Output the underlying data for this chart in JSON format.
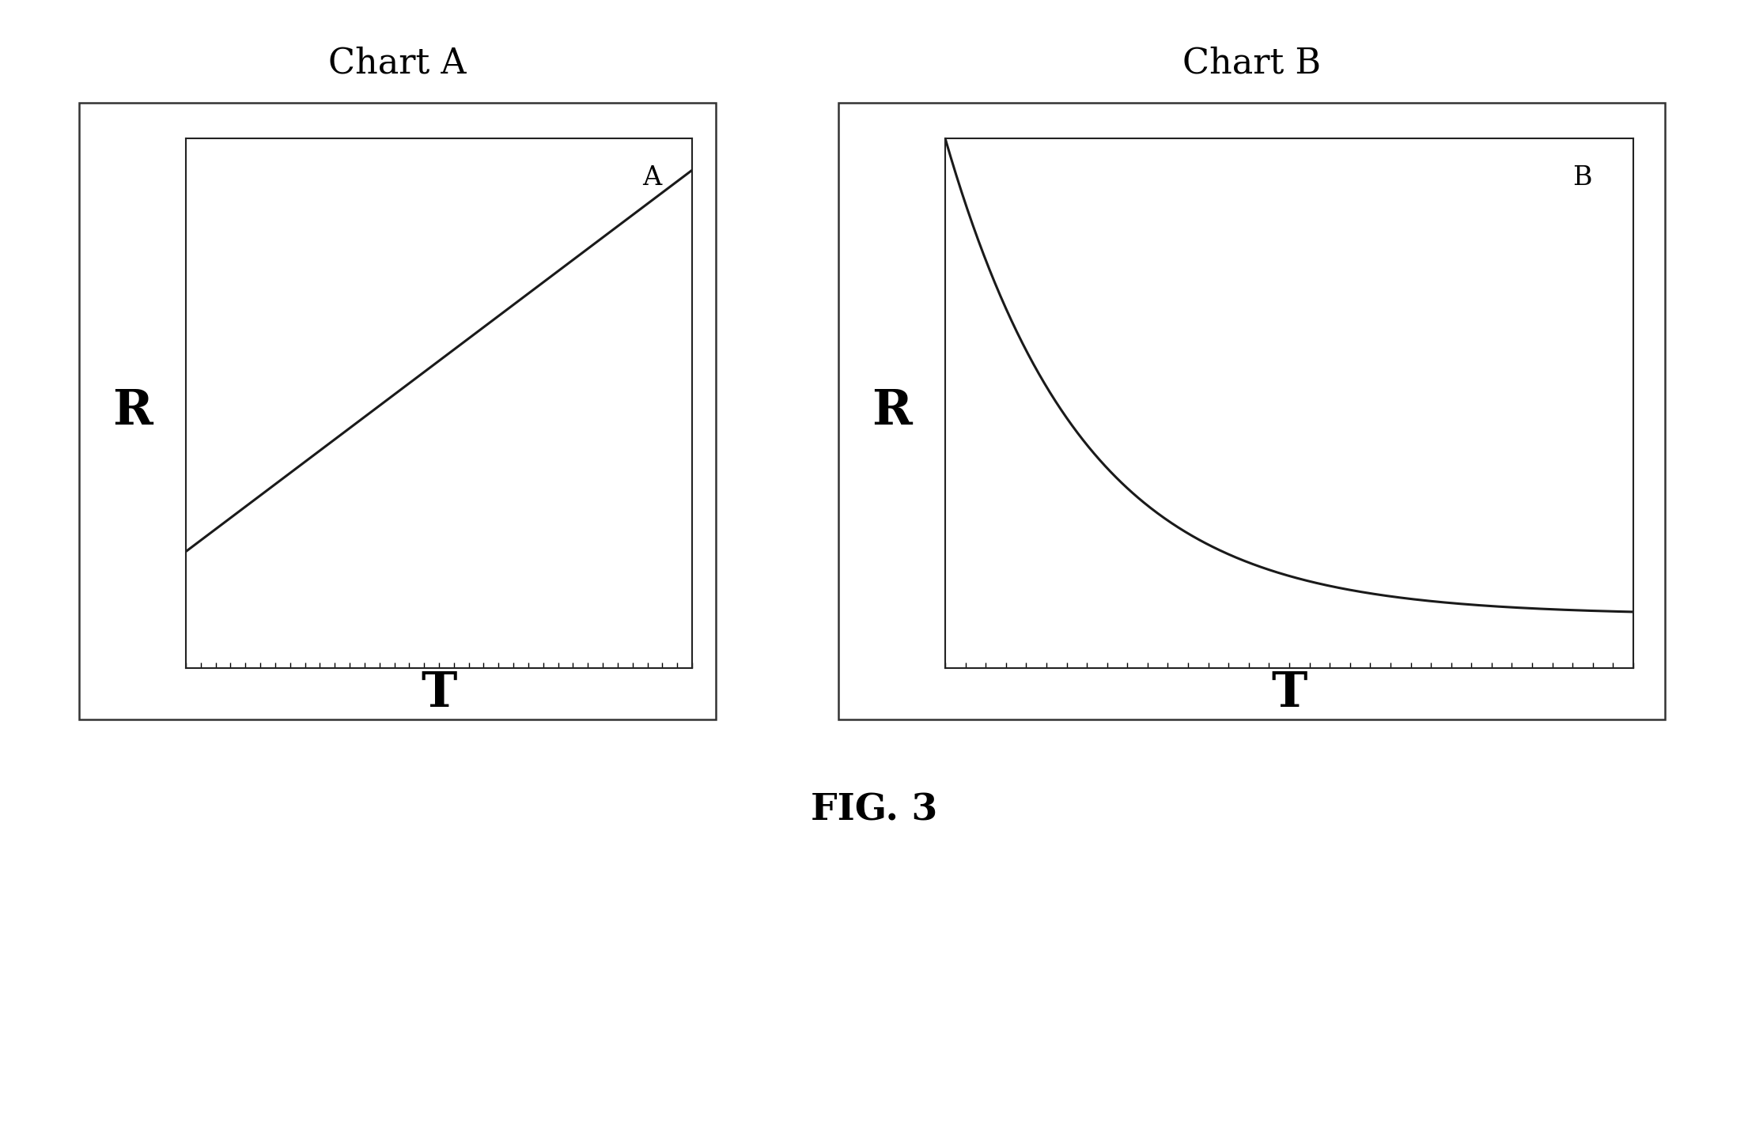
{
  "title_a": "Chart A",
  "title_b": "Chart B",
  "fig_caption": "FIG. 3",
  "label_a": "A",
  "label_b": "B",
  "xlabel": "T",
  "ylabel": "R",
  "background_color": "#ffffff",
  "line_color": "#1a1a1a",
  "box_color": "#333333",
  "title_fontsize": 32,
  "label_fontsize": 24,
  "axis_label_fontsize": 38,
  "caption_fontsize": 34,
  "r_label_fontsize": 44
}
